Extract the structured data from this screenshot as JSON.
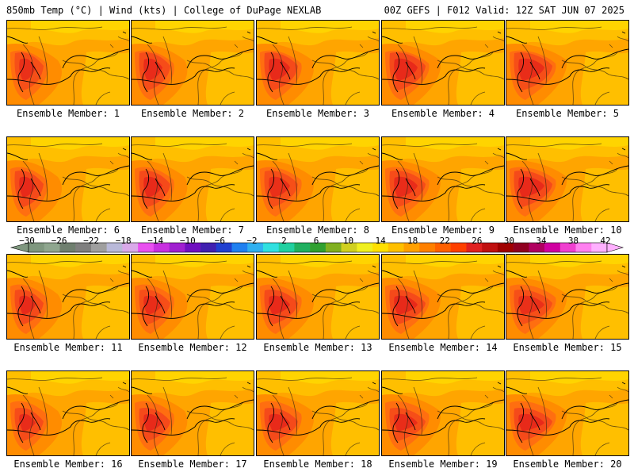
{
  "header": {
    "left": "850mb Temp (°C) | Wind (kts) | College of DuPage NEXLAB",
    "right": "00Z GEFS | F012 Valid: 12Z SAT JUN 07 2025"
  },
  "panels": [
    {
      "label": "Ensemble Member: 1"
    },
    {
      "label": "Ensemble Member: 2"
    },
    {
      "label": "Ensemble Member: 3"
    },
    {
      "label": "Ensemble Member: 4"
    },
    {
      "label": "Ensemble Member: 5"
    },
    {
      "label": "Ensemble Member: 6"
    },
    {
      "label": "Ensemble Member: 7"
    },
    {
      "label": "Ensemble Member: 8"
    },
    {
      "label": "Ensemble Member: 9"
    },
    {
      "label": "Ensemble Member: 10"
    },
    {
      "label": "Ensemble Member: 11"
    },
    {
      "label": "Ensemble Member: 12"
    },
    {
      "label": "Ensemble Member: 13"
    },
    {
      "label": "Ensemble Member: 14"
    },
    {
      "label": "Ensemble Member: 15"
    },
    {
      "label": "Ensemble Member: 16"
    },
    {
      "label": "Ensemble Member: 17"
    },
    {
      "label": "Ensemble Member: 18"
    },
    {
      "label": "Ensemble Member: 19"
    },
    {
      "label": "Ensemble Member: 20"
    }
  ],
  "colorbar": {
    "ticks": [
      "−30",
      "−26",
      "−22",
      "−18",
      "−14",
      "−10",
      "−6",
      "−2",
      "2",
      "6",
      "10",
      "14",
      "18",
      "22",
      "26",
      "30",
      "34",
      "38",
      "42"
    ],
    "colors": [
      "#7f977f",
      "#8fa68f",
      "#6f7f6f",
      "#7f7f7f",
      "#9f9f9f",
      "#b9b9d9",
      "#d9a9e9",
      "#e94ff0",
      "#c830e0",
      "#a020d0",
      "#7010c0",
      "#4020b0",
      "#2040d0",
      "#2080f0",
      "#30b0f0",
      "#30e0e0",
      "#20d0a0",
      "#20b060",
      "#30a030",
      "#80b020",
      "#d0d020",
      "#f0f020",
      "#ffe000",
      "#ffc000",
      "#ffa000",
      "#ff8000",
      "#ff6000",
      "#ff4000",
      "#e02020",
      "#c01010",
      "#a00000",
      "#900020",
      "#b00060",
      "#d000a0",
      "#f040d0",
      "#ff80f0",
      "#ffb0ff"
    ]
  },
  "map_colors": {
    "t12": "#ffd400",
    "t14": "#ffbf00",
    "t16": "#ffa500",
    "t18": "#ff8c00",
    "t20": "#ff6e10",
    "t22": "#f54a1a",
    "t24": "#e82a1a"
  }
}
